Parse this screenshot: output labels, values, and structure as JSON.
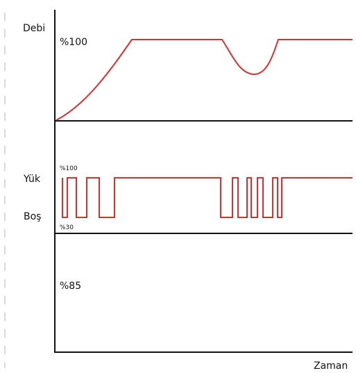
{
  "labels": {
    "flow": "Debi",
    "flow_percent": "%100",
    "load": "Yük",
    "unload": "Boş",
    "load_percent_high": "%100",
    "load_percent_low": "%30",
    "bottom_percent": "%85",
    "time": "Zaman"
  },
  "colors": {
    "axis": "#111111",
    "signal": "#e32b2b",
    "dash": "#b0b0b0"
  }
}
